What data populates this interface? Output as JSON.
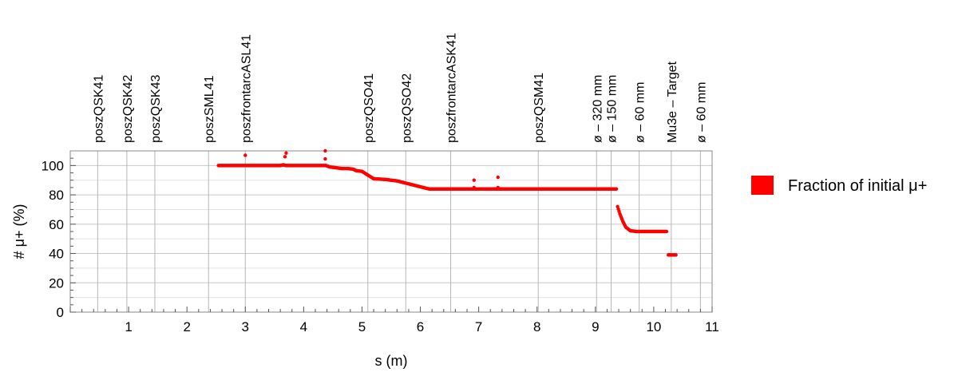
{
  "chart_data": {
    "type": "scatter",
    "xlabel": "s (m)",
    "ylabel": "# μ+ (%)",
    "xlim": [
      0,
      11
    ],
    "ylim": [
      0,
      110
    ],
    "x_ticks": [
      1,
      2,
      3,
      4,
      5,
      6,
      7,
      8,
      9,
      10,
      11
    ],
    "y_ticks": [
      0,
      20,
      40,
      60,
      80,
      100
    ],
    "grid": true,
    "legend_position": "right",
    "color": "#ff0000",
    "beamline_elements": [
      {
        "label": "poszQSK41",
        "s": 0.47
      },
      {
        "label": "poszQSK42",
        "s": 0.97
      },
      {
        "label": "poszQSK43",
        "s": 1.45
      },
      {
        "label": "poszSML41",
        "s": 2.37
      },
      {
        "label": "poszfrontarcASL41",
        "s": 3.0
      },
      {
        "label": "poszQSO41",
        "s": 5.1
      },
      {
        "label": "poszQSO42",
        "s": 5.75
      },
      {
        "label": "poszfrontarcASK41",
        "s": 6.52
      },
      {
        "label": "poszQSM41",
        "s": 8.02
      },
      {
        "label": "ø – 320 mm",
        "s": 9.02
      },
      {
        "label": "ø – 150 mm",
        "s": 9.27
      },
      {
        "label": "ø – 60 mm",
        "s": 9.75
      },
      {
        "label": "Mu3e – Target",
        "s": 10.3
      },
      {
        "label": "ø – 60 mm",
        "s": 10.8
      }
    ],
    "series": [
      {
        "name": "Fraction of initial μ+",
        "x": [
          2.54,
          2.7,
          2.9,
          3.0,
          3.2,
          3.4,
          3.6,
          3.65,
          3.7,
          3.8,
          4.0,
          4.2,
          4.35,
          4.38,
          4.45,
          4.55,
          4.65,
          4.75,
          4.85,
          4.9,
          5.0,
          5.2,
          5.4,
          5.6,
          5.8,
          6.0,
          6.15,
          6.5,
          6.9,
          7.3,
          7.8,
          8.3,
          8.8,
          9.36,
          9.38,
          9.42,
          9.47,
          9.52,
          9.6,
          9.7,
          9.9,
          10.1,
          10.22,
          10.25,
          10.3,
          10.38
        ],
        "y": [
          100,
          100,
          100,
          100,
          100,
          100,
          100,
          100.5,
          100,
          100,
          100,
          100,
          100,
          100,
          99,
          98.5,
          98,
          98,
          97.5,
          96.5,
          96,
          91,
          90.5,
          89.5,
          87.5,
          85.5,
          84,
          84,
          84,
          84,
          84,
          84,
          84,
          84,
          72,
          67,
          62,
          58,
          55.5,
          55,
          55,
          55,
          55,
          39,
          39,
          39
        ]
      }
    ],
    "outliers": {
      "x": [
        3.0,
        3.68,
        3.7,
        4.37,
        4.37,
        6.92,
        7.33,
        6.92,
        7.33
      ],
      "y": [
        107,
        106,
        108.5,
        110,
        104.5,
        90,
        92,
        85,
        85
      ]
    }
  }
}
